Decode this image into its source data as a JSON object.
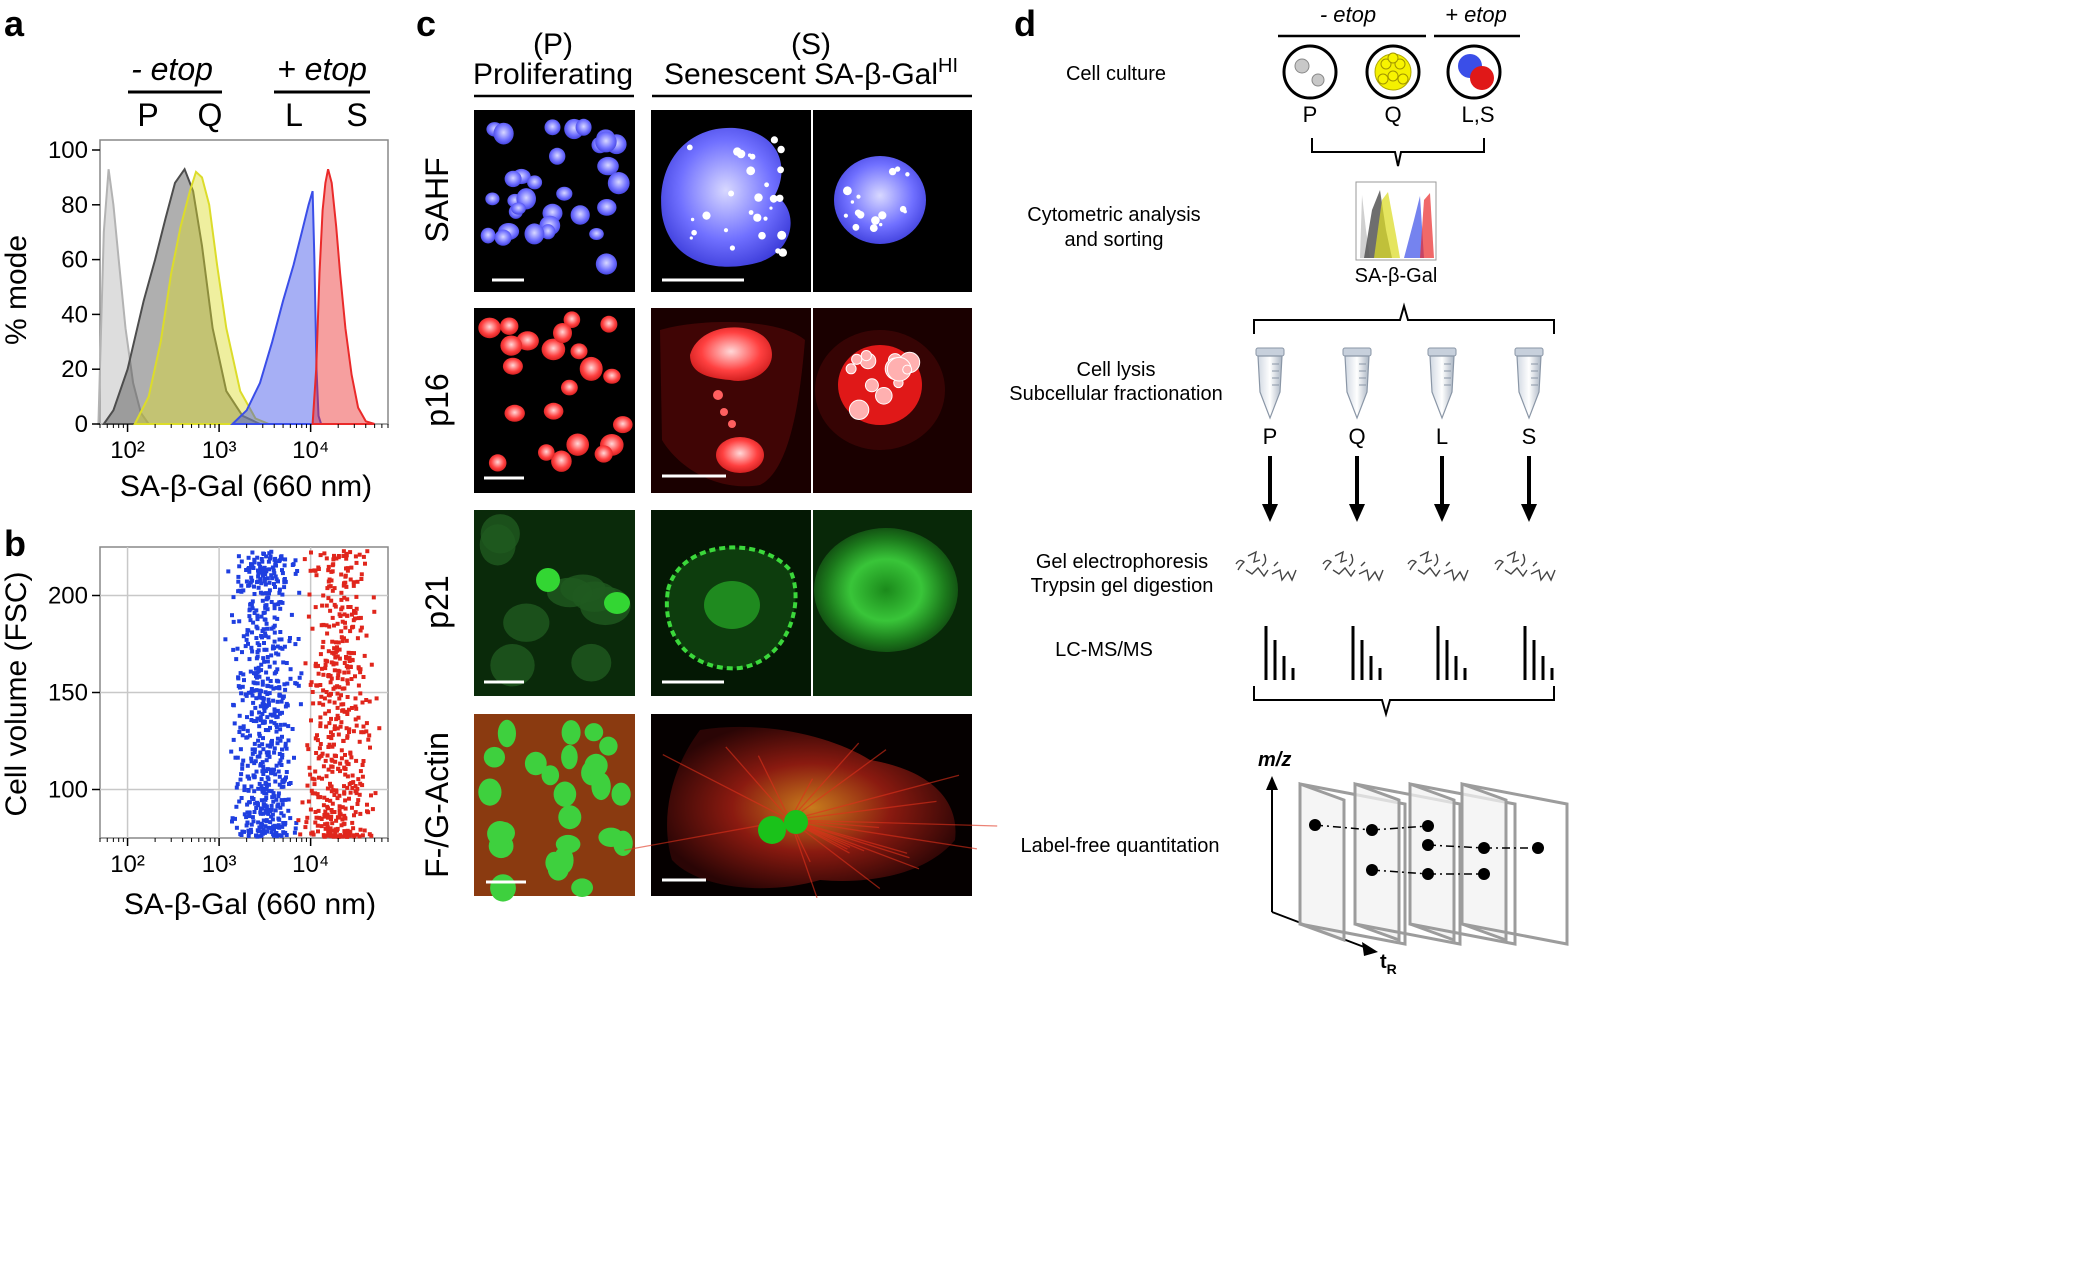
{
  "panels": {
    "a": {
      "letter": "a",
      "header_minus": "- etop",
      "header_plus": "+ etop",
      "groups": [
        "P",
        "Q",
        "L",
        "S"
      ],
      "xlabel": "SA-β-Gal (660 nm)",
      "ylabel": "% mode",
      "chart_data": {
        "type": "area",
        "xscale": "log",
        "xlim": [
          50,
          70000
        ],
        "ylim": [
          0,
          100
        ],
        "yticks": [
          0,
          20,
          40,
          60,
          80,
          100
        ],
        "xtick_labels": [
          "10²",
          "10³",
          "10⁴"
        ],
        "series": [
          {
            "name": "P",
            "color": "#b3b3b3",
            "points": [
              [
                48,
                0
              ],
              [
                55,
                70
              ],
              [
                62,
                93
              ],
              [
                70,
                80
              ],
              [
                80,
                60
              ],
              [
                95,
                35
              ],
              [
                115,
                15
              ],
              [
                140,
                4
              ],
              [
                170,
                0
              ]
            ]
          },
          {
            "name": "Q",
            "color": "#4d4d4d",
            "points": [
              [
                55,
                0
              ],
              [
                70,
                5
              ],
              [
                100,
                20
              ],
              [
                150,
                45
              ],
              [
                200,
                60
              ],
              [
                260,
                75
              ],
              [
                330,
                88
              ],
              [
                420,
                93
              ],
              [
                520,
                85
              ],
              [
                650,
                65
              ],
              [
                850,
                35
              ],
              [
                1200,
                12
              ],
              [
                1800,
                3
              ],
              [
                2800,
                0
              ]
            ]
          },
          {
            "name": "Q",
            "color": "#dcdc2a",
            "points": [
              [
                120,
                0
              ],
              [
                170,
                10
              ],
              [
                230,
                30
              ],
              [
                300,
                55
              ],
              [
                380,
                72
              ],
              [
                480,
                85
              ],
              [
                560,
                92
              ],
              [
                650,
                90
              ],
              [
                780,
                80
              ],
              [
                950,
                58
              ],
              [
                1200,
                35
              ],
              [
                1700,
                12
              ],
              [
                2500,
                2
              ],
              [
                3500,
                0
              ]
            ]
          },
          {
            "name": "L",
            "color": "#3a4ee8",
            "points": [
              [
                1400,
                0
              ],
              [
                2000,
                5
              ],
              [
                2800,
                15
              ],
              [
                3800,
                30
              ],
              [
                5000,
                45
              ],
              [
                6500,
                58
              ],
              [
                8000,
                70
              ],
              [
                9500,
                80
              ],
              [
                10500,
                85
              ],
              [
                11000,
                60
              ],
              [
                11600,
                20
              ],
              [
                12200,
                3
              ],
              [
                13000,
                0
              ]
            ]
          },
          {
            "name": "S",
            "color": "#ea2a2a",
            "points": [
              [
                10500,
                0
              ],
              [
                11500,
                20
              ],
              [
                12500,
                55
              ],
              [
                13500,
                78
              ],
              [
                14500,
                88
              ],
              [
                15500,
                93
              ],
              [
                17000,
                88
              ],
              [
                19000,
                72
              ],
              [
                21000,
                55
              ],
              [
                24000,
                35
              ],
              [
                28000,
                18
              ],
              [
                33000,
                6
              ],
              [
                40000,
                1
              ],
              [
                50000,
                0
              ]
            ]
          }
        ]
      }
    },
    "b": {
      "letter": "b",
      "xlabel": "SA-β-Gal (660 nm)",
      "ylabel": "Cell volume (FSC)",
      "chart_data": {
        "type": "scatter",
        "xscale": "log",
        "xlim": [
          50,
          70000
        ],
        "ylim": [
          75,
          225
        ],
        "yticks": [
          100,
          150,
          200
        ],
        "xtick_labels": [
          "10²",
          "10³",
          "10⁴"
        ],
        "grid": true,
        "series": [
          {
            "color": "#1f3fe0",
            "x_range": [
              1000,
              9000
            ],
            "y_range": [
              76,
              224
            ],
            "n_points": 650
          },
          {
            "color": "#e0261c",
            "x_range": [
              6000,
              60000
            ],
            "y_range": [
              76,
              224
            ],
            "n_points": 520
          }
        ]
      }
    },
    "c": {
      "letter": "c",
      "col_p_label": "(P)",
      "col_p_title": "Proliferating",
      "col_s_label": "(S)",
      "col_s_title": "Senescent SA-β-Gal",
      "col_s_sup": "HI",
      "rows": [
        {
          "label": "SAHF",
          "color": "#5b5bff"
        },
        {
          "label": "p16",
          "color": "#ff3030"
        },
        {
          "label": "p21",
          "color": "#2fd12f"
        },
        {
          "label": "F-/G-Actin",
          "color": "#e0351e"
        }
      ]
    },
    "d": {
      "letter": "d",
      "header_minus": "- etop",
      "header_plus": "+ etop",
      "steps": {
        "culture": "Cell culture",
        "cytometry_line1": "Cytometric analysis",
        "cytometry_line2": "and sorting",
        "lysis_line1": "Cell lysis",
        "lysis_line2": "Subcellular fractionation",
        "gel_line1": "Gel electrophoresis",
        "gel_line2": "Trypsin gel digestion",
        "lcms": "LC-MS/MS",
        "quant": "Label-free quantitation"
      },
      "culture_labels": [
        "P",
        "Q",
        "L,S"
      ],
      "histogram_label": "SA-β-Gal",
      "tube_labels": [
        "P",
        "Q",
        "L",
        "S"
      ],
      "axis_mz": "m/z",
      "axis_tr": "t",
      "axis_tr_sub": "R"
    }
  }
}
